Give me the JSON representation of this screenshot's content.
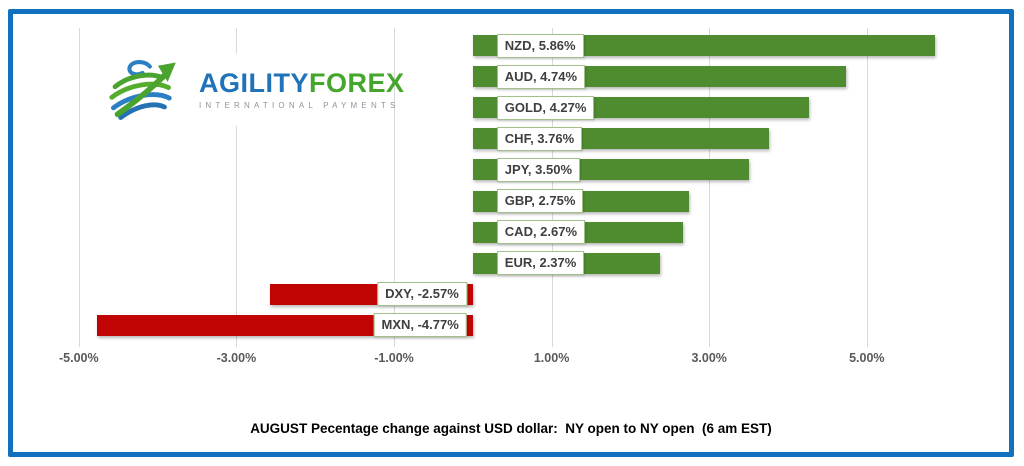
{
  "window": {
    "background": "#ffffff",
    "frame_border_color": "#1271bf"
  },
  "logo": {
    "icon": "globe-arrow-icon",
    "brand_primary": "AGILITY",
    "brand_secondary": "FOREX",
    "tagline": "INTERNATIONAL PAYMENTS",
    "colors": {
      "primary": "#2173b9",
      "secondary": "#44a62a",
      "tagline": "#8e959c",
      "divider": "#44a62a"
    }
  },
  "chart_data": {
    "type": "bar",
    "orientation": "horizontal",
    "caption": "AUGUST Pecentage change against USD dollar:  NY open to NY open  (6 am EST)",
    "categories": [
      "NZD",
      "AUD",
      "GOLD",
      "CHF",
      "JPY",
      "GBP",
      "CAD",
      "EUR",
      "DXY",
      "MXN"
    ],
    "values": [
      5.86,
      4.74,
      4.27,
      3.76,
      3.5,
      2.75,
      2.67,
      2.37,
      -2.57,
      -4.77
    ],
    "data_labels": [
      "NZD, 5.86%",
      "AUD, 4.74%",
      "GOLD, 4.27%",
      "CHF, 3.76%",
      "JPY, 3.50%",
      "GBP, 2.75%",
      "CAD, 2.67%",
      "EUR, 2.37%",
      "DXY, -2.57%",
      "MXN, -4.77%"
    ],
    "x_ticks": [
      {
        "value": -5,
        "label": "-5.00%"
      },
      {
        "value": -3,
        "label": "-3.00%"
      },
      {
        "value": -1,
        "label": "-1.00%"
      },
      {
        "value": 1,
        "label": "1.00%"
      },
      {
        "value": 3,
        "label": "3.00%"
      },
      {
        "value": 5,
        "label": "5.00%"
      }
    ],
    "xlim": [
      -5.3,
      6.6
    ],
    "grid": true,
    "legend": "none",
    "xlabel": "",
    "ylabel": "",
    "colors": {
      "positive": "#4f8c2f",
      "negative": "#c00404",
      "gridline": "#d9d9d9",
      "tick_label": "#595959",
      "data_label_text": "#3f3f3f",
      "data_label_border": "#a2c089"
    }
  }
}
